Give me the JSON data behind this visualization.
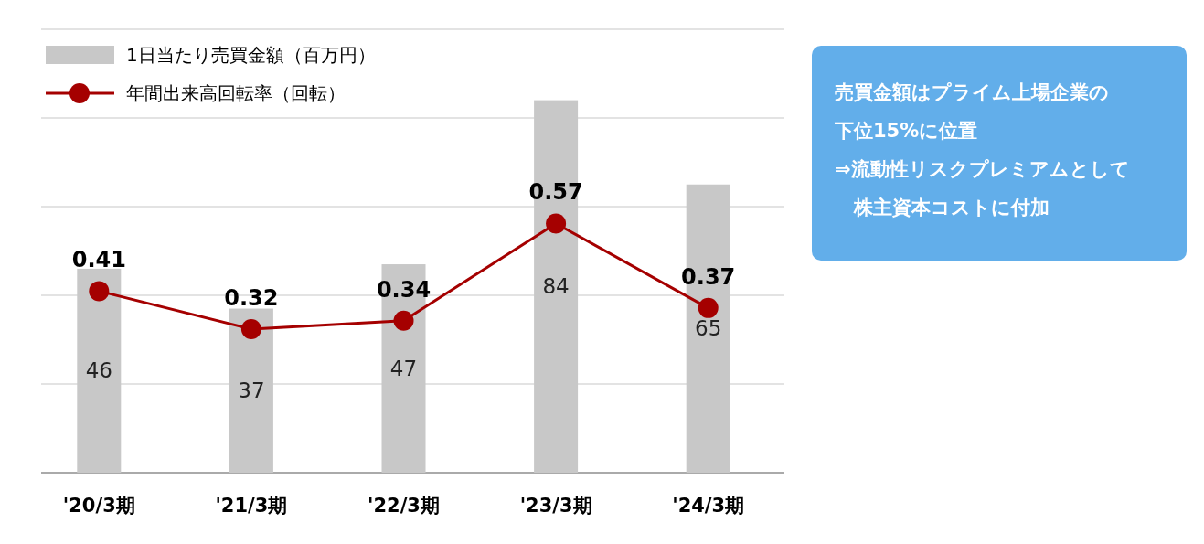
{
  "chart_data": [
    {
      "type": "bar",
      "categories": [
        "'20/3期",
        "'21/3期",
        "'22/3期",
        "'23/3期",
        "'24/3期"
      ],
      "series": [
        {
          "name": "1日当たり売買金額（百万円）",
          "type": "bar",
          "color": "#c8c8c8",
          "values": [
            46,
            37,
            47,
            84,
            65
          ]
        },
        {
          "name": "年間出来高回転率（回転）",
          "type": "line",
          "axis": "y2",
          "color": "#a50000",
          "marker": "circle",
          "values": [
            0.41,
            0.32,
            0.34,
            0.57,
            0.37
          ]
        }
      ],
      "ylim": [
        0,
        100
      ],
      "yticks": [
        {
          "value": 0,
          "label": null
        },
        {
          "value": 20,
          "label": null
        },
        {
          "value": 40,
          "label": null
        },
        {
          "value": 60,
          "label": null
        },
        {
          "value": 80,
          "label": null
        },
        {
          "value": 100,
          "label": null
        }
      ],
      "y2lim": [
        -0.02,
        1.03
      ],
      "tick_labels": "x",
      "grid": "y",
      "legend": "top left",
      "data_labels": true
    },
    {
      "type": "other",
      "annotations": [
        "売買金額はプライム上場企業の",
        "下位15%に位置",
        "⇒流動性リスクプレミアムとして",
        "　株主資本コストに付加"
      ]
    }
  ]
}
